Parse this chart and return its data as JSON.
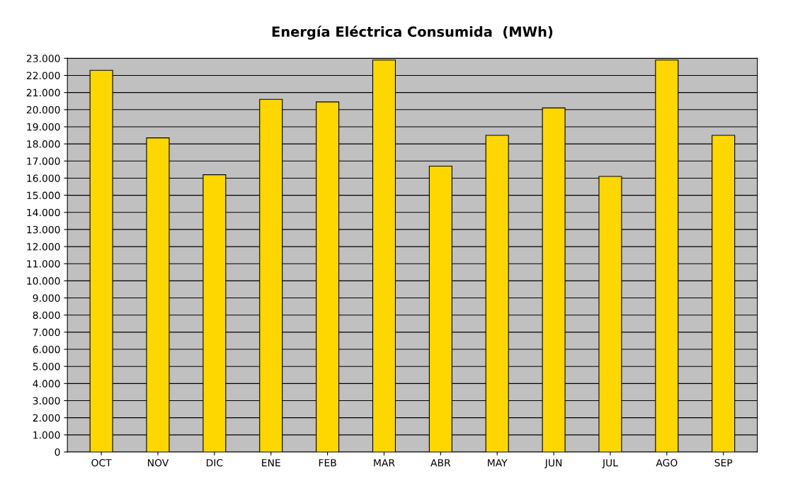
{
  "chart_data": {
    "type": "bar",
    "title": "Energía Eléctrica Consumida  (MWh)",
    "categories": [
      "OCT",
      "NOV",
      "DIC",
      "ENE",
      "FEB",
      "MAR",
      "ABR",
      "MAY",
      "JUN",
      "JUL",
      "AGO",
      "SEP"
    ],
    "values": [
      22300,
      18350,
      16200,
      20600,
      20450,
      22900,
      16700,
      18500,
      20100,
      16100,
      22900,
      18500
    ],
    "color": "#ffd700",
    "ylim": [
      0,
      23000
    ],
    "yticks": [
      0,
      {
        "value": 1000,
        "label": "1.000"
      },
      {
        "value": 2000,
        "label": "2.000"
      },
      {
        "value": 3000,
        "label": "3.000"
      },
      {
        "value": 4000,
        "label": "4.000"
      },
      {
        "value": 5000,
        "label": "5.000"
      },
      {
        "value": 6000,
        "label": "6.000"
      },
      {
        "value": 7000,
        "label": "7.000"
      },
      {
        "value": 8000,
        "label": "8.000"
      },
      {
        "value": 9000,
        "label": "9.000"
      },
      {
        "value": 10000,
        "label": "10.000"
      },
      {
        "value": 11000,
        "label": "11.000"
      },
      {
        "value": 12000,
        "label": "12.000"
      },
      {
        "value": 13000,
        "label": "13.000"
      },
      {
        "value": 14000,
        "label": "14.000"
      },
      {
        "value": 15000,
        "label": "15.000"
      },
      {
        "value": 16000,
        "label": "16.000"
      },
      {
        "value": 17000,
        "label": "17.000"
      },
      {
        "value": 18000,
        "label": "18.000"
      },
      {
        "value": 19000,
        "label": "19.000"
      },
      {
        "value": 20000,
        "label": "20.000"
      },
      {
        "value": 21000,
        "label": "21.000"
      },
      {
        "value": 22000,
        "label": "22.000"
      },
      {
        "value": 23000,
        "label": "23.000"
      }
    ],
    "grid": "y"
  }
}
